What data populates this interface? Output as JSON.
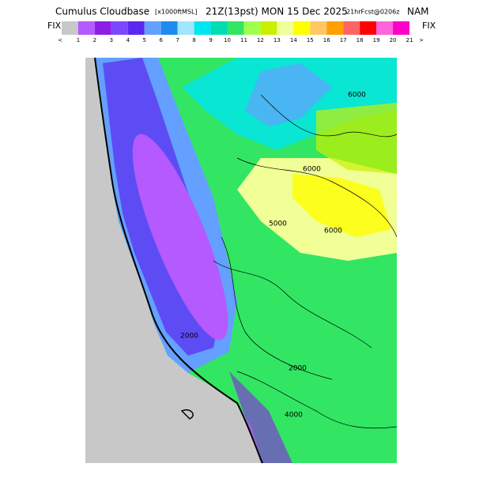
{
  "header": {
    "title": "Cumulus Cloudbase",
    "units": "[x1000ftMSL]",
    "time": "21Z(13pst) MON 15 Dec 2025",
    "forecast": "21hrFcst@0206z",
    "model": "NAM"
  },
  "scale": {
    "left_label": "FIX",
    "right_label": "FIX",
    "labels": [
      "<",
      "1",
      "2",
      "3",
      "4",
      "5",
      "6",
      "7",
      "8",
      "9",
      "10",
      "11",
      "12",
      "13",
      "14",
      "15",
      "16",
      "17",
      "18",
      "19",
      "20",
      "21",
      ">"
    ],
    "colors": [
      "#c8c8c8",
      "#b45aff",
      "#8c1ee6",
      "#7d46ff",
      "#5a28f0",
      "#64a0ff",
      "#1e8cf0",
      "#a0e6ff",
      "#00e6f0",
      "#00dcb4",
      "#32e664",
      "#a0ff50",
      "#c8f000",
      "#f0ff96",
      "#ffff00",
      "#ffc864",
      "#ffa000",
      "#ff6464",
      "#ff0000",
      "#ff64dc",
      "#ff00c8"
    ]
  },
  "map": {
    "contour_labels": [
      "6000",
      "6000",
      "5000",
      "6000",
      "2000",
      "2000",
      "4000"
    ]
  }
}
